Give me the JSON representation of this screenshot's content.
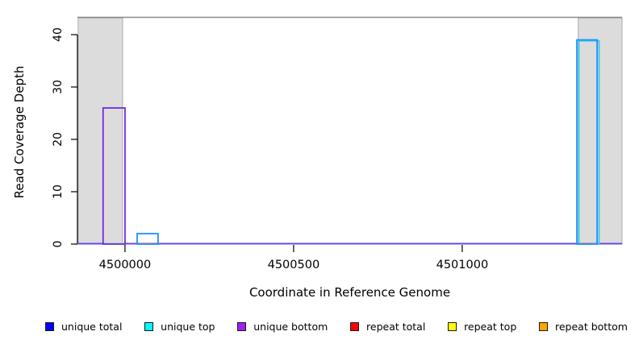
{
  "chart_data": {
    "type": "line",
    "subtype": "step-coverage",
    "title": "",
    "xlabel": "Coordinate in Reference Genome",
    "ylabel": "Read Coverage Depth",
    "xlim": [
      4499859,
      4501474
    ],
    "ylim": [
      0,
      43.4
    ],
    "x_ticks": [
      {
        "value": 4500000,
        "label": "4500000"
      },
      {
        "value": 4500500,
        "label": "4500500"
      },
      {
        "value": 4501000,
        "label": "4501000"
      }
    ],
    "y_ticks": [
      {
        "value": 0,
        "label": "0"
      },
      {
        "value": 10,
        "label": "10"
      },
      {
        "value": 20,
        "label": "20"
      },
      {
        "value": 30,
        "label": "30"
      },
      {
        "value": 40,
        "label": "40"
      }
    ],
    "grid": "off",
    "legend_position": "bottom",
    "shaded_regions": [
      {
        "name": "left-shaded-region",
        "start": 4499861,
        "end": 4499993
      },
      {
        "name": "right-shaded-region",
        "start": 4501344,
        "end": 4501474
      }
    ],
    "series": [
      {
        "name": "unique total",
        "legend_color": "#0000FF",
        "segments": [
          {
            "start": 4500036,
            "end": 4500098,
            "depth": 2
          },
          {
            "start": 4501340,
            "end": 4501400,
            "depth": 39
          }
        ]
      },
      {
        "name": "unique top",
        "legend_color": "#00FFFF",
        "segments": [
          {
            "start": 4501343,
            "end": 4501403,
            "depth": 39
          }
        ]
      },
      {
        "name": "unique bottom",
        "legend_color": "#A020F0",
        "segments": [
          {
            "start": 4499935,
            "end": 4500000,
            "depth": 26
          }
        ]
      },
      {
        "name": "repeat total",
        "legend_color": "#FF0000",
        "segments": []
      },
      {
        "name": "repeat top",
        "legend_color": "#FFFF00",
        "segments": []
      },
      {
        "name": "repeat bottom",
        "legend_color": "#FFA500",
        "segments": []
      }
    ],
    "baseline_segments": [
      {
        "color_name": "purple",
        "start": 4499859,
        "end": 4499935
      },
      {
        "color_name": "green",
        "start": 4499935,
        "end": 4500000
      },
      {
        "color_name": "purple",
        "start": 4500000,
        "end": 4500036
      },
      {
        "color_name": "red",
        "start": 4500036,
        "end": 4500098
      },
      {
        "color_name": "purple",
        "start": 4500098,
        "end": 4501340
      },
      {
        "color_name": "red",
        "start": 4501340,
        "end": 4501400
      },
      {
        "color_name": "purple",
        "start": 4501400,
        "end": 4501474
      }
    ],
    "render_colors": {
      "shaded_fill": "#DCDCDC",
      "shaded_border": "#ACACAC",
      "top_border": "#8B8B8B",
      "axis": "#000000",
      "baseline_purple": "#6B48E4",
      "baseline_green": "#86D88C",
      "baseline_red": "#EA4B4B",
      "bar_unique_bottom": "#6E2BE2",
      "bar_unique_total": "#1E90FF",
      "bar_unique_top": "#30CDE8"
    }
  },
  "legend": {
    "items": [
      {
        "label": "unique total",
        "color": "#0000FF"
      },
      {
        "label": "unique top",
        "color": "#00FFFF"
      },
      {
        "label": "unique bottom",
        "color": "#A020F0"
      },
      {
        "label": "repeat total",
        "color": "#FF0000"
      },
      {
        "label": "repeat top",
        "color": "#FFFF00"
      },
      {
        "label": "repeat bottom",
        "color": "#FFA500"
      }
    ]
  }
}
